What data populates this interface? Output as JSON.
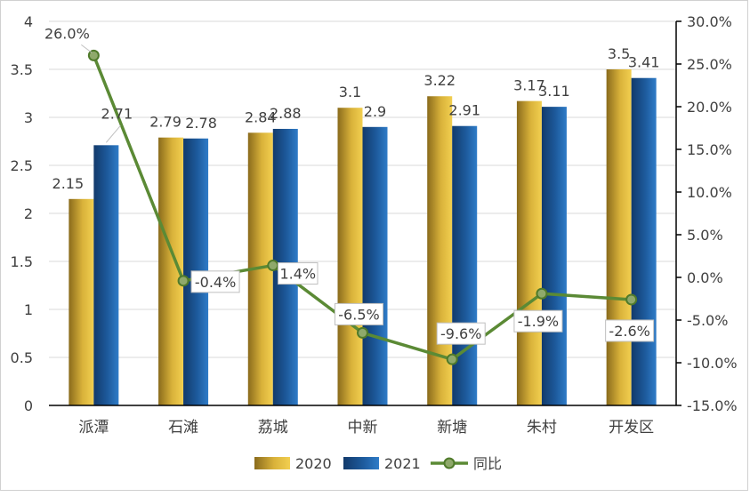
{
  "chart_data": {
    "type": "bar",
    "categories": [
      "派潭",
      "石滩",
      "荔城",
      "中新",
      "新塘",
      "朱村",
      "开发区"
    ],
    "series": [
      {
        "name": "2020",
        "type": "bar",
        "axis": "left",
        "values": [
          2.15,
          2.79,
          2.84,
          3.1,
          3.22,
          3.17,
          3.5
        ],
        "labels": [
          "2.15",
          "2.79",
          "2.84",
          "3.1",
          "3.22",
          "3.17",
          "3.5"
        ],
        "color": "#c9a227"
      },
      {
        "name": "2021",
        "type": "bar",
        "axis": "left",
        "values": [
          2.71,
          2.78,
          2.88,
          2.9,
          2.91,
          3.11,
          3.41
        ],
        "labels": [
          "2.71",
          "2.78",
          "2.88",
          "2.9",
          "2.91",
          "3.11",
          "3.41"
        ],
        "color": "#1e5b9c"
      },
      {
        "name": "同比",
        "type": "line",
        "axis": "right",
        "values": [
          26.0,
          -0.4,
          1.4,
          -6.5,
          -9.6,
          -1.9,
          -2.6
        ],
        "labels": [
          "26.0%",
          "-0.4%",
          "1.4%",
          "-6.5%",
          "-9.6%",
          "-1.9%",
          "-2.6%"
        ],
        "color": "#5b8a35"
      }
    ],
    "y_left": {
      "min": 0,
      "max": 4,
      "ticks": [
        "0",
        "0.5",
        "1",
        "1.5",
        "2",
        "2.5",
        "3",
        "3.5",
        "4"
      ]
    },
    "y_right": {
      "min": -15,
      "max": 30,
      "ticks": [
        "-15.0%",
        "-10.0%",
        "-5.0%",
        "0.0%",
        "5.0%",
        "10.0%",
        "15.0%",
        "20.0%",
        "25.0%",
        "30.0%"
      ]
    },
    "grid": true,
    "legend_position": "bottom"
  }
}
